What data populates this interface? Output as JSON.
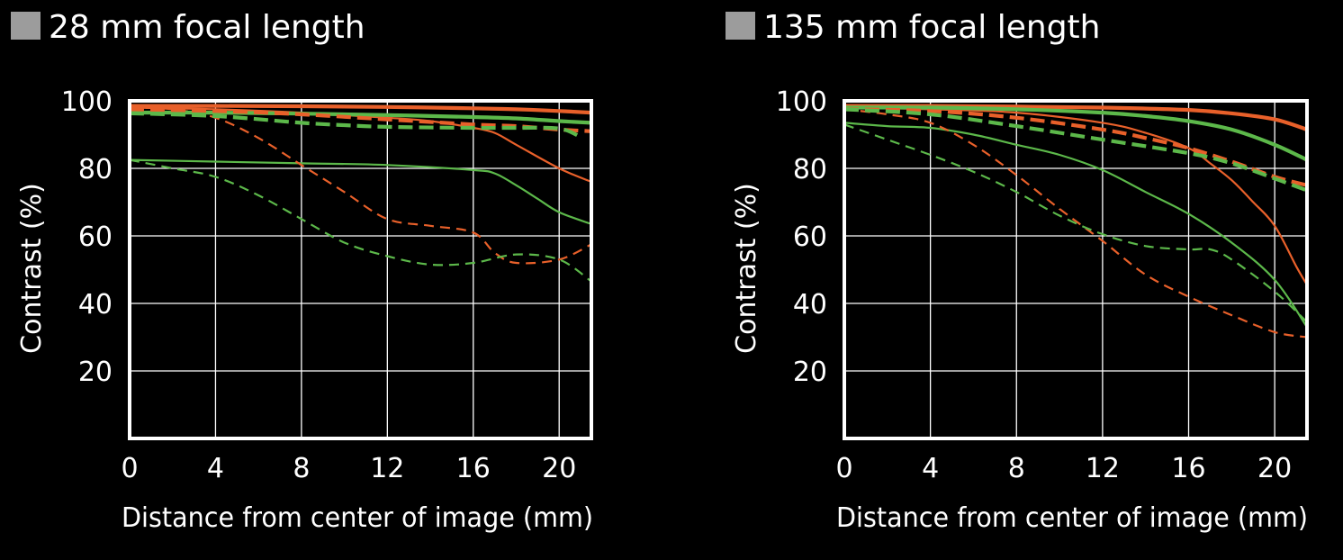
{
  "colors": {
    "background": "#000000",
    "frame": "#ffffff",
    "grid": "#ffffff",
    "title_square": "#9c9c9c",
    "orange": "#e8602a",
    "green": "#5cb84a"
  },
  "chart_data": [
    {
      "type": "line",
      "title": "28 mm focal length",
      "xlabel": "Distance from center of image (mm)",
      "ylabel": "Contrast (%)",
      "xlim": [
        0,
        21.5
      ],
      "ylim": [
        0,
        100
      ],
      "x_ticks": [
        0,
        4,
        8,
        12,
        16,
        20
      ],
      "y_ticks": [
        20,
        40,
        60,
        80,
        100
      ],
      "grid": true,
      "series": [
        {
          "color": "orange",
          "dash": false,
          "width": "thick",
          "x": [
            0,
            4,
            8,
            12,
            16,
            18,
            20,
            21.5
          ],
          "y": [
            98.5,
            98.5,
            98.4,
            98.2,
            97.8,
            97.5,
            97,
            96.5
          ]
        },
        {
          "color": "green",
          "dash": false,
          "width": "thick",
          "x": [
            0,
            4,
            8,
            12,
            16,
            18,
            20,
            21.5
          ],
          "y": [
            96.5,
            96.5,
            96.2,
            95.8,
            95.2,
            94.8,
            94,
            93.5
          ]
        },
        {
          "color": "orange",
          "dash": true,
          "width": "thick",
          "x": [
            0,
            4,
            8,
            12,
            16,
            18,
            20,
            21.5
          ],
          "y": [
            97.5,
            97,
            96,
            94.5,
            93,
            92.5,
            91.5,
            91
          ]
        },
        {
          "color": "green",
          "dash": true,
          "width": "thick",
          "x": [
            0,
            4,
            8,
            10,
            12,
            16,
            18,
            20,
            21
          ],
          "y": [
            96.3,
            95.5,
            93.5,
            92.8,
            92.3,
            92,
            92,
            91.8,
            89.3
          ]
        },
        {
          "color": "orange",
          "dash": false,
          "width": "thin",
          "x": [
            0,
            4,
            8,
            12,
            14,
            16,
            17,
            18,
            20,
            21.5
          ],
          "y": [
            98,
            97.5,
            96.5,
            95,
            94,
            92,
            90.5,
            87,
            80,
            76
          ]
        },
        {
          "color": "green",
          "dash": false,
          "width": "thin",
          "x": [
            0,
            4,
            8,
            12,
            16,
            17,
            18,
            19,
            20,
            21.5
          ],
          "y": [
            82.5,
            82,
            81.5,
            81,
            79.5,
            78.5,
            75,
            71,
            67,
            63.5
          ]
        },
        {
          "color": "orange",
          "dash": true,
          "width": "thin",
          "x": [
            0,
            2,
            4,
            6,
            8,
            10,
            12,
            14,
            16,
            17,
            18,
            20,
            21.5
          ],
          "y": [
            98,
            97.5,
            95,
            89,
            81,
            73,
            65,
            63,
            61,
            55,
            52,
            53,
            57.5
          ]
        },
        {
          "color": "green",
          "dash": true,
          "width": "thin",
          "x": [
            0,
            2,
            4,
            6,
            8,
            10,
            12,
            14,
            16,
            18,
            20,
            21.5
          ],
          "y": [
            82.5,
            80,
            77.5,
            72,
            65,
            58,
            54,
            51.5,
            52,
            54.5,
            53,
            46.5
          ]
        }
      ]
    },
    {
      "type": "line",
      "title": "135 mm focal length",
      "xlabel": "Distance from center of image (mm)",
      "ylabel": "Contrast (%)",
      "xlim": [
        0,
        21.5
      ],
      "ylim": [
        0,
        100
      ],
      "x_ticks": [
        0,
        4,
        8,
        12,
        16,
        20
      ],
      "y_ticks": [
        20,
        40,
        60,
        80,
        100
      ],
      "grid": true,
      "series": [
        {
          "color": "orange",
          "dash": false,
          "width": "thick",
          "x": [
            0,
            4,
            8,
            12,
            16,
            18,
            20,
            21.5
          ],
          "y": [
            98.5,
            98.5,
            98.3,
            98,
            97.3,
            96.3,
            94.5,
            91.5
          ]
        },
        {
          "color": "green",
          "dash": false,
          "width": "thick",
          "x": [
            0,
            4,
            8,
            12,
            14,
            16,
            18,
            20,
            21.5
          ],
          "y": [
            98,
            98,
            97.5,
            96.5,
            95.5,
            94,
            91.5,
            87,
            82.5
          ]
        },
        {
          "color": "orange",
          "dash": true,
          "width": "thick",
          "x": [
            0,
            4,
            8,
            12,
            14,
            16,
            18,
            20,
            21.5
          ],
          "y": [
            97.5,
            97,
            95,
            91.5,
            89,
            86,
            82,
            77.5,
            75
          ]
        },
        {
          "color": "green",
          "dash": true,
          "width": "thick",
          "x": [
            0,
            4,
            8,
            12,
            16,
            18,
            20,
            21.5
          ],
          "y": [
            97.5,
            96,
            92.5,
            88.5,
            84.5,
            81.5,
            77,
            73.5
          ]
        },
        {
          "color": "orange",
          "dash": false,
          "width": "thin",
          "x": [
            0,
            4,
            8,
            12,
            14,
            16,
            17,
            18,
            19,
            20,
            21,
            21.5
          ],
          "y": [
            98,
            97.5,
            96.5,
            93.5,
            90.5,
            86,
            81.5,
            76.5,
            70,
            63,
            51,
            45.5
          ]
        },
        {
          "color": "green",
          "dash": false,
          "width": "thin",
          "x": [
            0,
            2,
            4,
            6,
            8,
            10,
            12,
            14,
            16,
            18,
            20,
            21.5
          ],
          "y": [
            93.5,
            92.5,
            92,
            90,
            87,
            84,
            79.5,
            73,
            66.5,
            58,
            47,
            33
          ]
        },
        {
          "color": "orange",
          "dash": true,
          "width": "thin",
          "x": [
            0,
            2,
            4,
            6,
            8,
            10,
            12,
            14,
            16,
            18,
            20,
            21.5
          ],
          "y": [
            97.5,
            96,
            93.5,
            87,
            78,
            68,
            58.5,
            48.5,
            42,
            36.5,
            31.5,
            30
          ]
        },
        {
          "color": "green",
          "dash": true,
          "width": "thin",
          "x": [
            0,
            2,
            4,
            6,
            8,
            10,
            12,
            14,
            16,
            17,
            18,
            20,
            21.5
          ],
          "y": [
            93,
            88.5,
            84,
            79,
            73,
            66,
            60.5,
            57,
            56,
            56,
            53,
            43.5,
            34.5
          ]
        }
      ]
    }
  ]
}
